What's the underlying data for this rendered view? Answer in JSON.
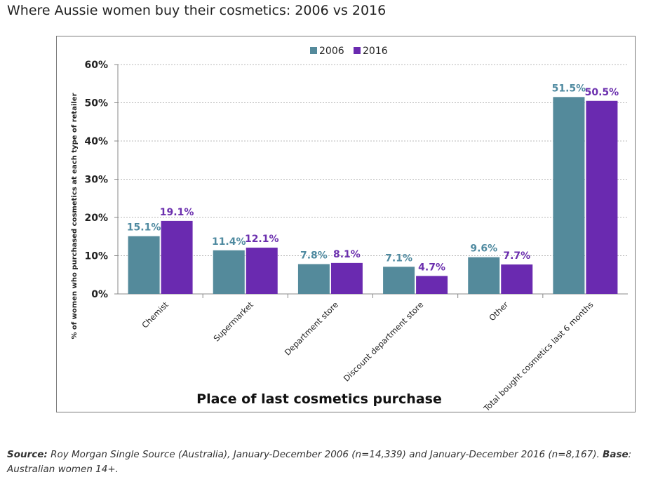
{
  "page": {
    "title": "Where Aussie women buy their cosmetics: 2006 vs 2016"
  },
  "chart_data": {
    "type": "bar",
    "title": "",
    "xlabel": "Place of last cosmetics purchase",
    "ylabel": "% of women who purchased cosmetics at each type of retailer",
    "ylim": [
      0,
      60
    ],
    "yticks": [
      "0%",
      "10%",
      "20%",
      "30%",
      "40%",
      "50%",
      "60%"
    ],
    "y_tick_values": [
      0,
      10,
      20,
      30,
      40,
      50,
      60
    ],
    "grid": true,
    "legend_placement": "top-center",
    "categories": [
      "Chemist",
      "Supermarket",
      "Department store",
      "Discount department store",
      "Other",
      "Total bought cosmetics last 6 months"
    ],
    "series": [
      {
        "name": "2006",
        "color": "#548a9b",
        "label_color": "#4f8aa0",
        "values": [
          15.1,
          11.4,
          7.8,
          7.1,
          9.6,
          51.5
        ],
        "labels": [
          "15.1%",
          "11.4%",
          "7.8%",
          "7.1%",
          "9.6%",
          "51.5%"
        ]
      },
      {
        "name": "2016",
        "color": "#6a2ab0",
        "label_color": "#6b2fae",
        "values": [
          19.1,
          12.1,
          8.1,
          4.7,
          7.7,
          50.5
        ],
        "labels": [
          "19.1%",
          "12.1%",
          "8.1%",
          "4.7%",
          "7.7%",
          "50.5%"
        ]
      }
    ]
  },
  "source": {
    "source_label": "Source:",
    "source_text": " Roy Morgan Single Source (Australia), January-December 2006 (n=14,339) and January-December 2016 (n=8,167). ",
    "base_label": "Base",
    "base_text": ": Australian women 14+."
  }
}
